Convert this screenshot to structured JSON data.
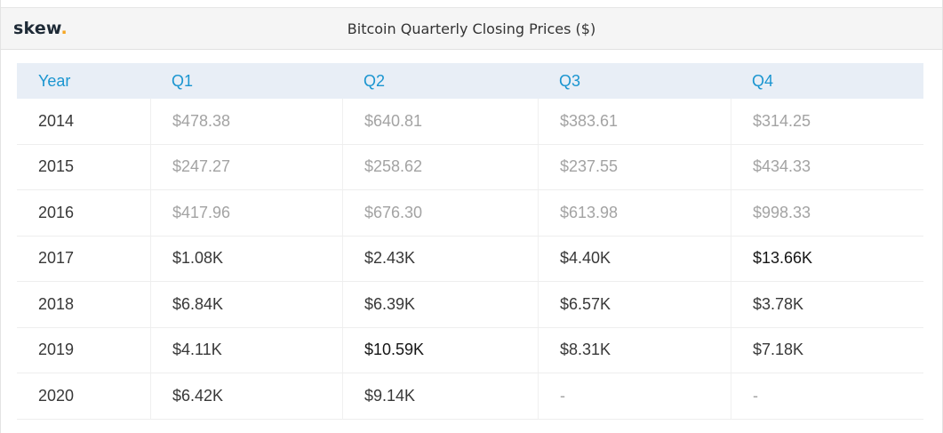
{
  "header": {
    "logo_text": "skew",
    "logo_dot": ".",
    "logo_dot_color": "#f5a623",
    "title": "Bitcoin Quarterly Closing Prices ($)"
  },
  "table": {
    "columns": [
      "Year",
      "Q1",
      "Q2",
      "Q3",
      "Q4"
    ],
    "rows": [
      {
        "year": "2014",
        "cells": [
          "$478.38",
          "$640.81",
          "$383.61",
          "$314.25"
        ]
      },
      {
        "year": "2015",
        "cells": [
          "$247.27",
          "$258.62",
          "$237.55",
          "$434.33"
        ]
      },
      {
        "year": "2016",
        "cells": [
          "$417.96",
          "$676.30",
          "$613.98",
          "$998.33"
        ]
      },
      {
        "year": "2017",
        "cells": [
          "$1.08K",
          "$2.43K",
          "$4.40K",
          "$13.66K"
        ]
      },
      {
        "year": "2018",
        "cells": [
          "$6.84K",
          "$6.39K",
          "$6.57K",
          "$3.78K"
        ]
      },
      {
        "year": "2019",
        "cells": [
          "$4.11K",
          "$10.59K",
          "$8.31K",
          "$7.18K"
        ]
      },
      {
        "year": "2020",
        "cells": [
          "$6.42K",
          "$9.14K",
          "-",
          "-"
        ]
      }
    ]
  },
  "chart_data": {
    "type": "table",
    "title": "Bitcoin Quarterly Closing Prices ($)",
    "columns": [
      "Year",
      "Q1",
      "Q2",
      "Q3",
      "Q4"
    ],
    "rows": [
      [
        "2014",
        "$478.38",
        "$640.81",
        "$383.61",
        "$314.25"
      ],
      [
        "2015",
        "$247.27",
        "$258.62",
        "$237.55",
        "$434.33"
      ],
      [
        "2016",
        "$417.96",
        "$676.30",
        "$613.98",
        "$998.33"
      ],
      [
        "2017",
        "$1.08K",
        "$2.43K",
        "$4.40K",
        "$13.66K"
      ],
      [
        "2018",
        "$6.84K",
        "$6.39K",
        "$6.57K",
        "$3.78K"
      ],
      [
        "2019",
        "$4.11K",
        "$10.59K",
        "$8.31K",
        "$7.18K"
      ],
      [
        "2020",
        "$6.42K",
        "$9.14K",
        "-",
        "-"
      ]
    ],
    "colors": {
      "header_text": "#1a95d0",
      "header_background": "#e8eef6",
      "muted_value": "#a3a3a3",
      "normal_value": "#383838",
      "highlight_value": "#151515"
    }
  }
}
